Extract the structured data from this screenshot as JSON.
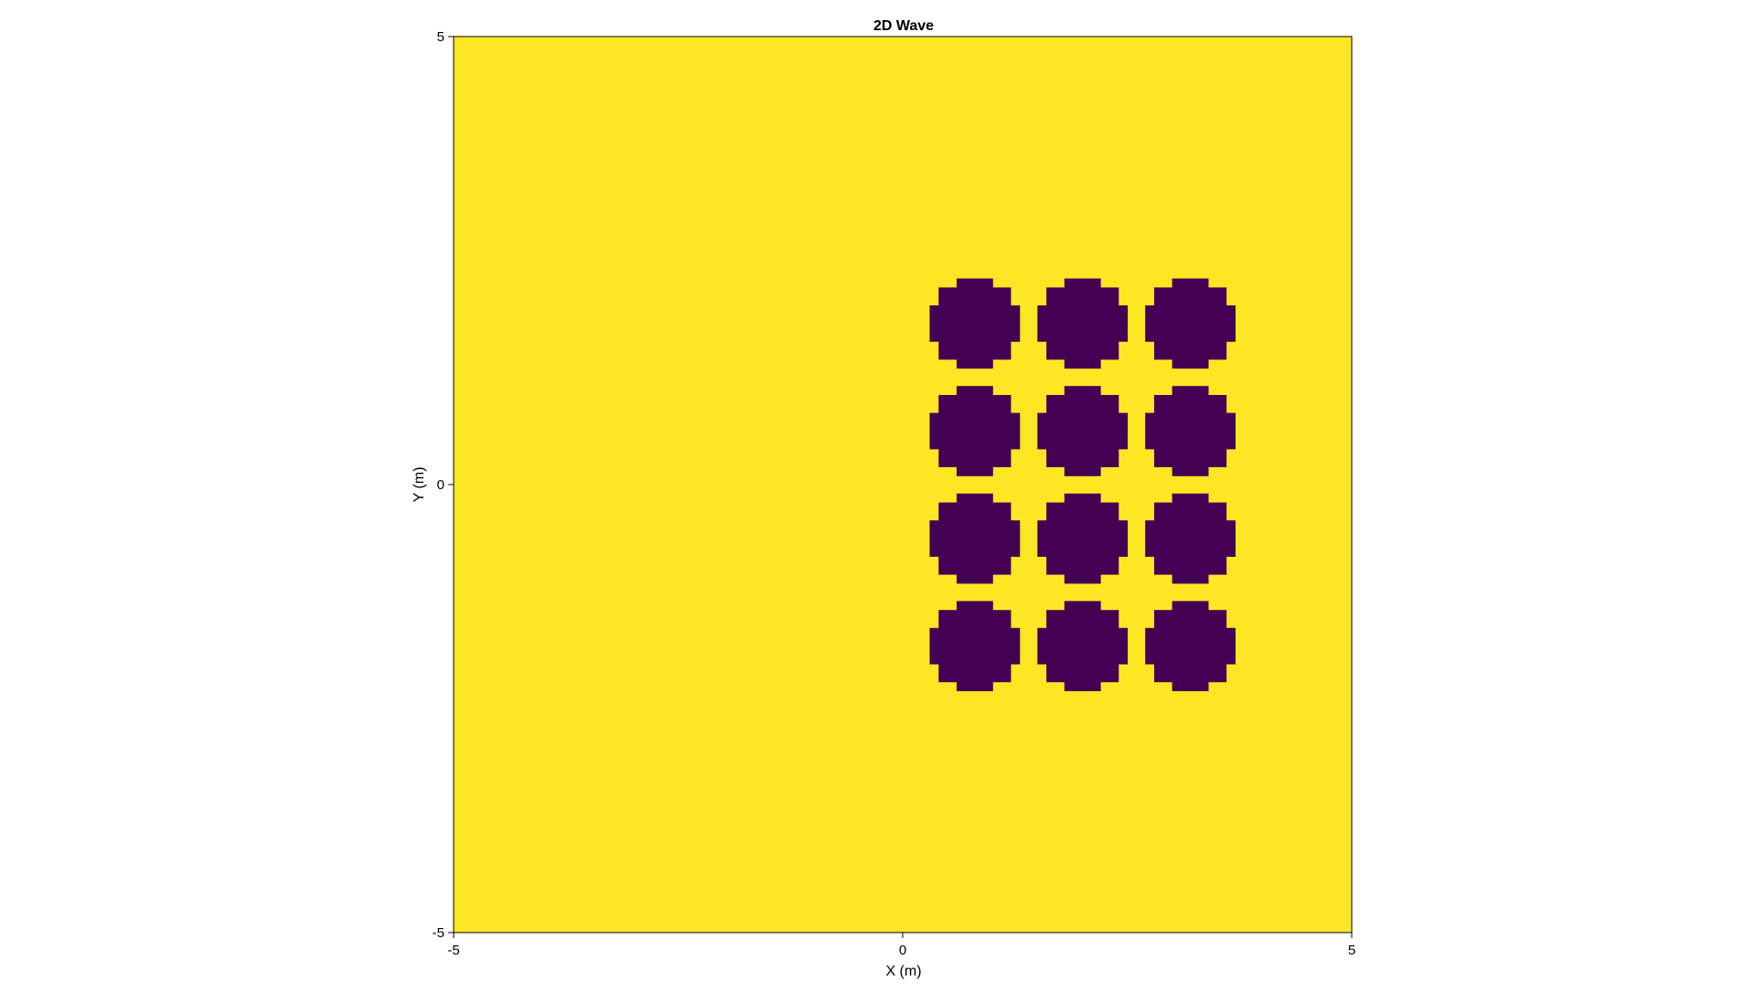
{
  "chart_data": {
    "type": "heatmap",
    "title": "2D Wave",
    "xlabel": "X (m)",
    "ylabel": "Y (m)",
    "xlim": [
      -5,
      5
    ],
    "ylim": [
      -5,
      5
    ],
    "x_ticks": [
      -5,
      0,
      5
    ],
    "y_ticks": [
      -5,
      0,
      5
    ],
    "x_tick_labels": [
      "-5",
      "0",
      "5"
    ],
    "y_tick_labels": [
      "-5",
      "0",
      "5"
    ],
    "grid": false,
    "legend": "none",
    "background_color": "#fde725",
    "region_color": "#440154",
    "regions": {
      "shape": "circle",
      "radius": 0.5,
      "centers_x": [
        0.8,
        2.0,
        3.2
      ],
      "centers_y": [
        1.8,
        0.6,
        -0.6,
        -1.8
      ]
    }
  }
}
